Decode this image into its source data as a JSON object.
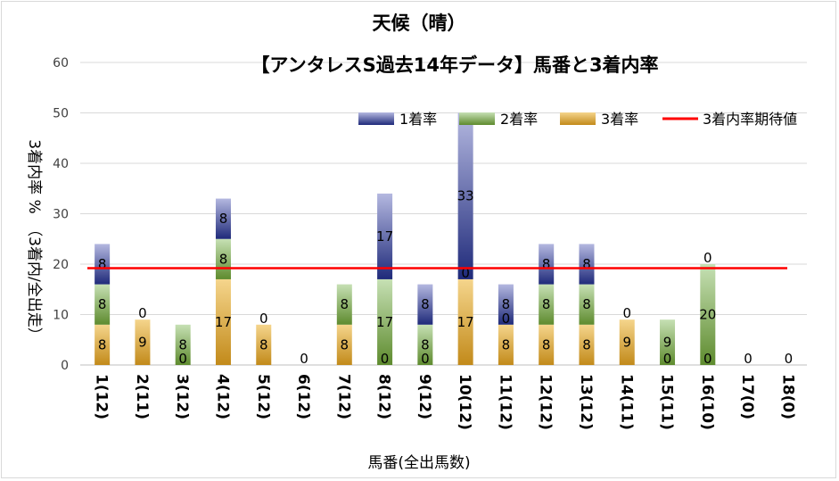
{
  "chart_data": {
    "type": "bar",
    "stacked": true,
    "title": "天候（晴）",
    "subtitle": "【アンタレスS過去14年データ】馬番と3着内率",
    "xlabel": "馬番(全出馬数)",
    "ylabel": "3着内率 %　（3着内/全出走）",
    "ylim": [
      0,
      60
    ],
    "yticks": [
      0,
      10,
      20,
      30,
      40,
      50,
      60
    ],
    "grid": true,
    "legend_position": "top-right",
    "categories": [
      "1(12)",
      "2(11)",
      "3(12)",
      "4(12)",
      "5(12)",
      "6(12)",
      "7(12)",
      "8(12)",
      "9(12)",
      "10(12)",
      "11(12)",
      "12(12)",
      "13(12)",
      "14(11)",
      "15(11)",
      "16(10)",
      "17(0)",
      "18(0)"
    ],
    "series": [
      {
        "name": "3着率",
        "colors": [
          "#c28a1a",
          "#f5d58c"
        ],
        "values": [
          8,
          9,
          0,
          17,
          8,
          0,
          8,
          0,
          0,
          17,
          8,
          8,
          8,
          9,
          0,
          0,
          0,
          0
        ],
        "labels": [
          "8",
          "9",
          "0",
          "17",
          "8",
          "0",
          "8",
          "0",
          "0",
          "17",
          "8",
          "8",
          "8",
          "9",
          "0",
          "0",
          "0",
          "0"
        ]
      },
      {
        "name": "2着率",
        "colors": [
          "#5e8b2e",
          "#c6e0b4"
        ],
        "values": [
          8,
          0,
          8,
          8,
          0,
          0,
          8,
          17,
          8,
          0,
          0,
          8,
          8,
          0,
          9,
          20,
          0,
          0
        ],
        "labels": [
          "8",
          "0",
          "8",
          "8",
          "0",
          "",
          "8",
          "17",
          "8",
          "0",
          "0",
          "8",
          "8",
          "0",
          "9",
          "20",
          "",
          ""
        ]
      },
      {
        "name": "1着率",
        "colors": [
          "#1f2a7a",
          "#b4b8e0"
        ],
        "values": [
          8,
          0,
          0,
          8,
          0,
          0,
          0,
          17,
          8,
          33,
          8,
          8,
          8,
          0,
          0,
          0,
          0,
          0
        ],
        "labels": [
          "8",
          "",
          "",
          "8",
          "",
          "",
          "",
          "17",
          "8",
          "33",
          "8",
          "8",
          "8",
          "",
          "",
          "0",
          "",
          ""
        ]
      }
    ],
    "reference_line": {
      "name": "3着内率期待値",
      "value": 19.2,
      "color": "#ff0000"
    }
  }
}
